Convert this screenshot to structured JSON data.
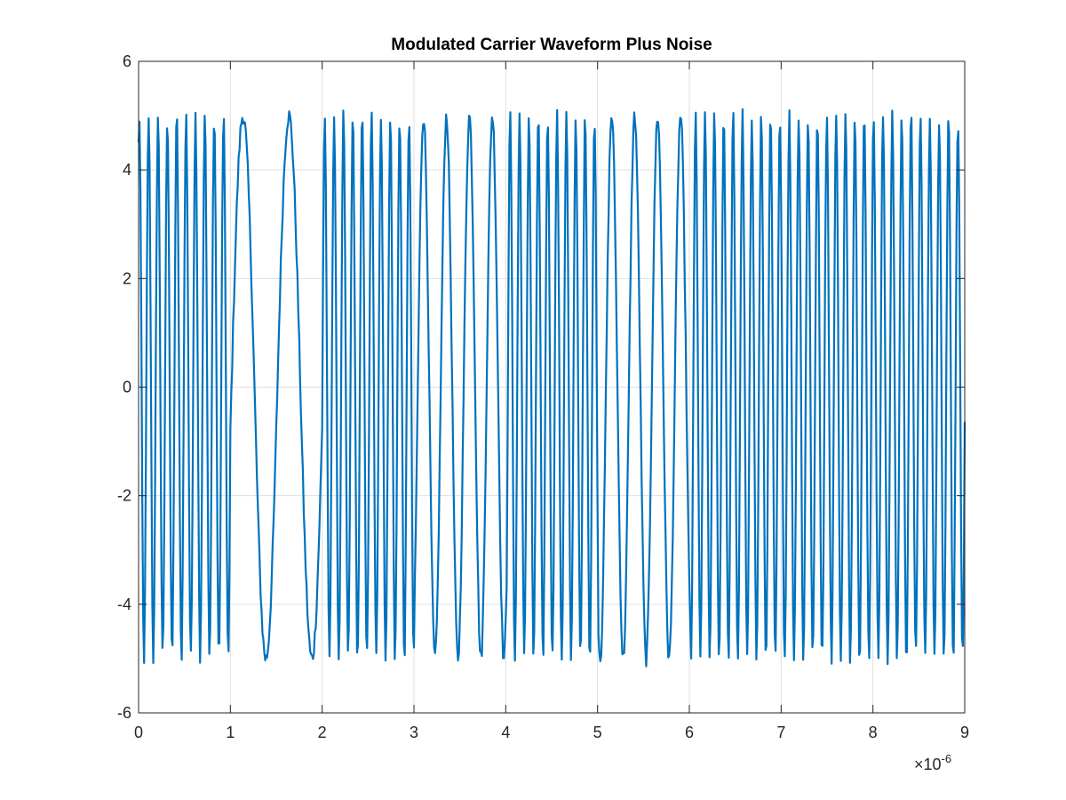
{
  "chart_data": {
    "type": "line",
    "title": "Modulated Carrier Waveform Plus Noise",
    "xlabel": "",
    "ylabel": "",
    "xlim": [
      0,
      9
    ],
    "ylim": [
      -6,
      6
    ],
    "x_multiplier_label": "×10",
    "x_multiplier_exponent": "-6",
    "x_multiplier": 1e-06,
    "x_ticks": [
      0,
      1,
      2,
      3,
      4,
      5,
      6,
      7,
      8,
      9
    ],
    "x_tick_labels": [
      "0",
      "1",
      "2",
      "3",
      "4",
      "5",
      "6",
      "7",
      "8",
      "9"
    ],
    "y_ticks": [
      -6,
      -4,
      -2,
      0,
      2,
      4,
      6
    ],
    "y_tick_labels": [
      "-6",
      "-4",
      "-2",
      "0",
      "2",
      "4",
      "6"
    ],
    "grid": true,
    "legend": "none",
    "series": [
      {
        "color": "#0072BD",
        "amplitude": 5,
        "noise_amplitude": 0.15,
        "sample_step": 0.01,
        "symbol_duration": 0.5,
        "symbol_frequencies_per_unit": [
          9.8,
          9.8,
          2.0,
          2.0,
          9.8,
          9.8,
          4.0,
          4.0,
          9.8,
          9.8,
          4.0,
          4.0,
          9.8,
          9.8,
          9.8,
          9.8,
          9.8,
          9.8
        ]
      }
    ]
  }
}
